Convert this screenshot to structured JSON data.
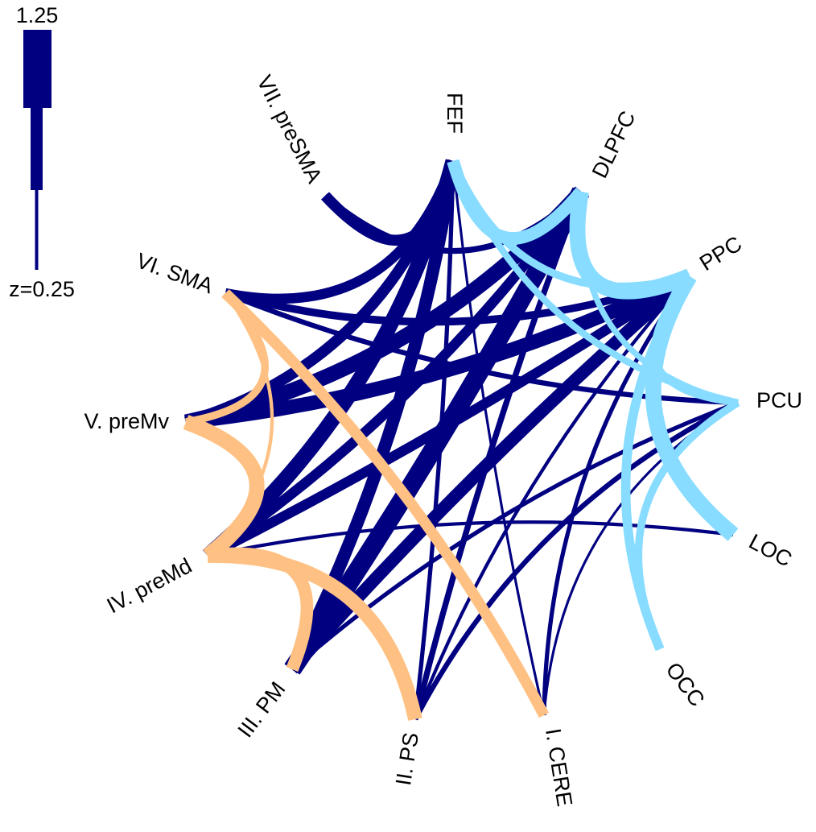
{
  "colors": {
    "between": "#000080",
    "motor": "#ffc183",
    "frontoparietal": "#87dcff"
  },
  "legend": {
    "max_label": "1.25",
    "min_label": "z=0.25",
    "max_value": 1.25,
    "min_value": 0.25
  },
  "nodes": [
    {
      "id": "FEF",
      "label": "FEF",
      "group": "frontoparietal"
    },
    {
      "id": "DLPFC",
      "label": "DLPFC",
      "group": "frontoparietal"
    },
    {
      "id": "PPC",
      "label": "PPC",
      "group": "frontoparietal"
    },
    {
      "id": "PCU",
      "label": "PCU",
      "group": "frontoparietal"
    },
    {
      "id": "LOC",
      "label": "LOC",
      "group": "frontoparietal"
    },
    {
      "id": "OCC",
      "label": "OCC",
      "group": "frontoparietal"
    },
    {
      "id": "CERE",
      "label": "I. CERE",
      "group": "motor"
    },
    {
      "id": "PS",
      "label": "II. PS",
      "group": "motor"
    },
    {
      "id": "PM",
      "label": "III. PM",
      "group": "motor"
    },
    {
      "id": "preMd",
      "label": "IV. preMd",
      "group": "motor"
    },
    {
      "id": "preMv",
      "label": "V. preMv",
      "group": "motor"
    },
    {
      "id": "SMA",
      "label": "VI. SMA",
      "group": "motor"
    },
    {
      "id": "preSMA",
      "label": "VII. preSMA",
      "group": "motor"
    }
  ],
  "edges": [
    {
      "source": "FEF",
      "target": "DLPFC",
      "weight": 0.9,
      "type": "frontoparietal"
    },
    {
      "source": "FEF",
      "target": "PPC",
      "weight": 0.6,
      "type": "frontoparietal"
    },
    {
      "source": "FEF",
      "target": "PCU",
      "weight": 0.55,
      "type": "frontoparietal"
    },
    {
      "source": "DLPFC",
      "target": "PPC",
      "weight": 1.1,
      "type": "frontoparietal"
    },
    {
      "source": "DLPFC",
      "target": "PCU",
      "weight": 0.5,
      "type": "frontoparietal"
    },
    {
      "source": "PPC",
      "target": "PCU",
      "weight": 0.55,
      "type": "frontoparietal"
    },
    {
      "source": "PPC",
      "target": "LOC",
      "weight": 1.1,
      "type": "frontoparietal"
    },
    {
      "source": "PPC",
      "target": "OCC",
      "weight": 0.7,
      "type": "frontoparietal"
    },
    {
      "source": "PCU",
      "target": "OCC",
      "weight": 0.6,
      "type": "frontoparietal"
    },
    {
      "source": "SMA",
      "target": "preMv",
      "weight": 0.6,
      "type": "motor"
    },
    {
      "source": "SMA",
      "target": "preMd",
      "weight": 0.35,
      "type": "motor"
    },
    {
      "source": "SMA",
      "target": "CERE",
      "weight": 0.8,
      "type": "motor"
    },
    {
      "source": "preMv",
      "target": "preMd",
      "weight": 1.05,
      "type": "motor"
    },
    {
      "source": "preMd",
      "target": "PM",
      "weight": 0.9,
      "type": "motor"
    },
    {
      "source": "preMd",
      "target": "PS",
      "weight": 1.0,
      "type": "motor"
    },
    {
      "source": "preSMA",
      "target": "FEF",
      "weight": 0.8,
      "type": "between"
    },
    {
      "source": "SMA",
      "target": "FEF",
      "weight": 0.75,
      "type": "between"
    },
    {
      "source": "preSMA",
      "target": "DLPFC",
      "weight": 0.5,
      "type": "between"
    },
    {
      "source": "SMA",
      "target": "PPC",
      "weight": 0.6,
      "type": "between"
    },
    {
      "source": "SMA",
      "target": "PCU",
      "weight": 0.45,
      "type": "between"
    },
    {
      "source": "preMv",
      "target": "DLPFC",
      "weight": 1.05,
      "type": "between"
    },
    {
      "source": "preMv",
      "target": "PPC",
      "weight": 1.0,
      "type": "between"
    },
    {
      "source": "preMv",
      "target": "FEF",
      "weight": 0.8,
      "type": "between"
    },
    {
      "source": "preMd",
      "target": "FEF",
      "weight": 1.05,
      "type": "between"
    },
    {
      "source": "preMd",
      "target": "DLPFC",
      "weight": 0.75,
      "type": "between"
    },
    {
      "source": "preMd",
      "target": "PPC",
      "weight": 0.75,
      "type": "between"
    },
    {
      "source": "preMd",
      "target": "LOC",
      "weight": 0.35,
      "type": "between"
    },
    {
      "source": "PM",
      "target": "DLPFC",
      "weight": 1.25,
      "type": "between"
    },
    {
      "source": "PM",
      "target": "FEF",
      "weight": 0.9,
      "type": "between"
    },
    {
      "source": "PM",
      "target": "PPC",
      "weight": 0.9,
      "type": "between"
    },
    {
      "source": "PM",
      "target": "PCU",
      "weight": 0.4,
      "type": "between"
    },
    {
      "source": "PS",
      "target": "FEF",
      "weight": 0.4,
      "type": "between"
    },
    {
      "source": "PS",
      "target": "DLPFC",
      "weight": 0.5,
      "type": "between"
    },
    {
      "source": "PS",
      "target": "PCU",
      "weight": 0.45,
      "type": "between"
    },
    {
      "source": "PS",
      "target": "PPC",
      "weight": 0.35,
      "type": "between"
    },
    {
      "source": "CERE",
      "target": "FEF",
      "weight": 0.3,
      "type": "between"
    },
    {
      "source": "CERE",
      "target": "PCU",
      "weight": 0.3,
      "type": "between"
    },
    {
      "source": "CERE",
      "target": "PPC",
      "weight": 0.4,
      "type": "between"
    }
  ]
}
